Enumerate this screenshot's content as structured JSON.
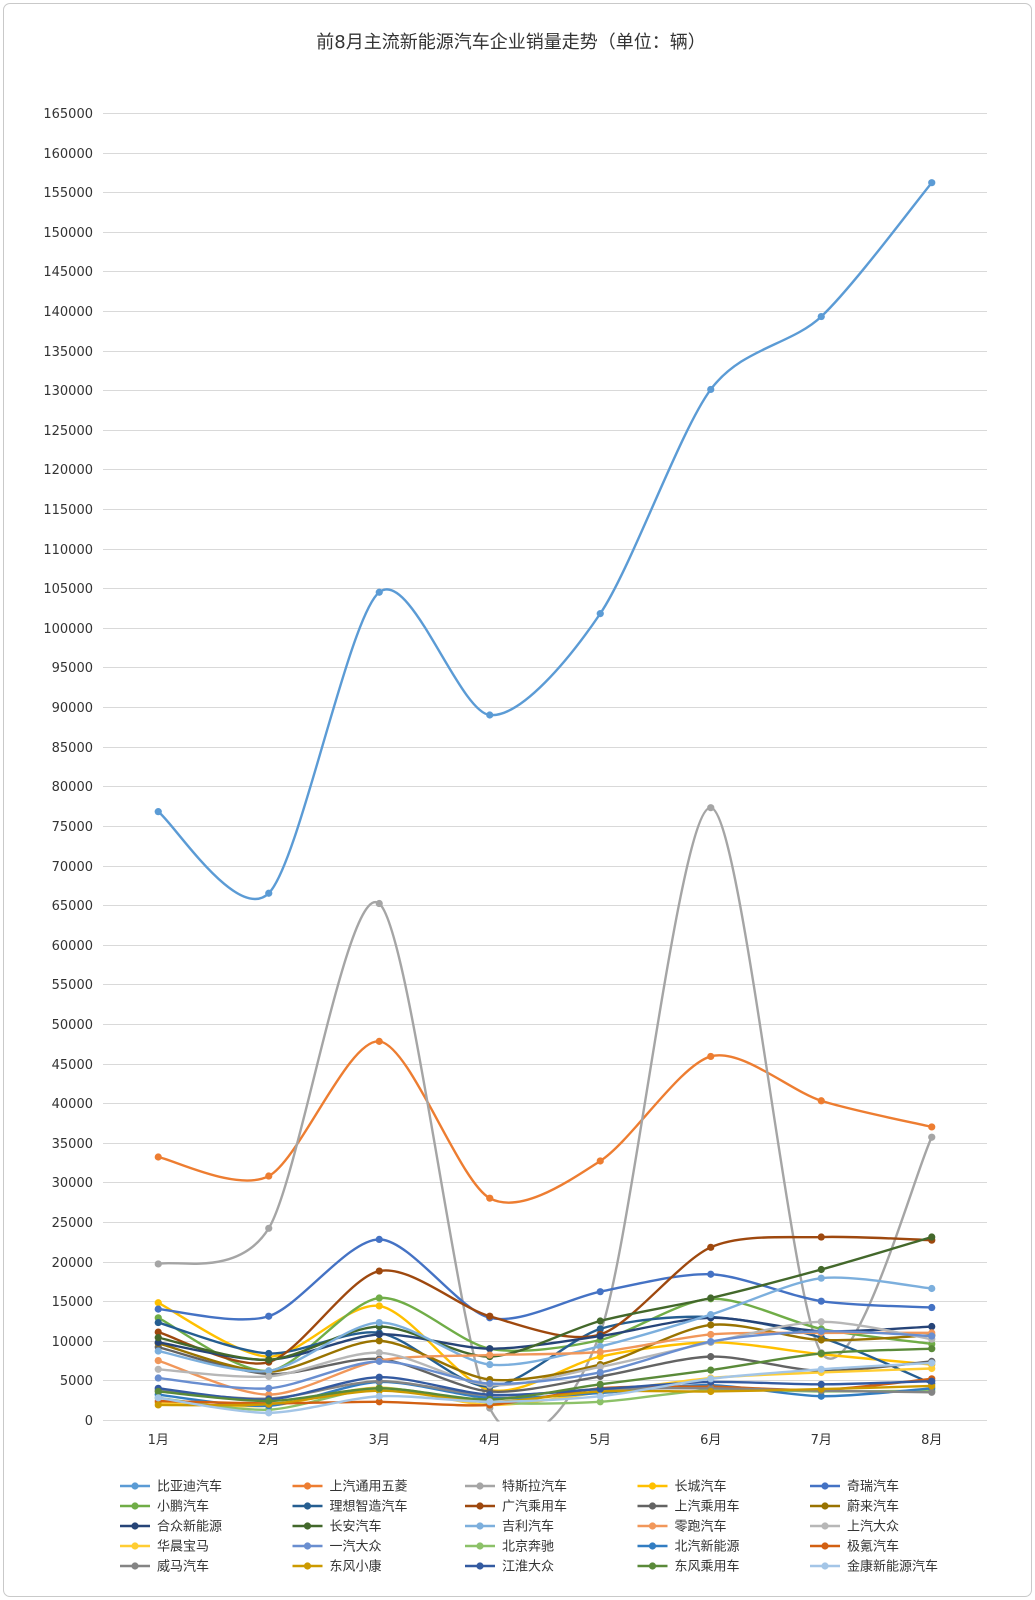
{
  "chart_data": {
    "type": "line",
    "title": "前8月主流新能源汽车企业销量走势（单位：辆）",
    "categories": [
      "1月",
      "2月",
      "3月",
      "4月",
      "5月",
      "6月",
      "7月",
      "8月"
    ],
    "ylim": [
      0,
      165000
    ],
    "ytick_step": 5000,
    "grid": true,
    "legend": "bottom",
    "smooth": true,
    "series": [
      {
        "name": "比亚迪汽车",
        "color": "#5b9bd5",
        "values": [
          76800,
          66500,
          104500,
          89000,
          101800,
          130100,
          139300,
          156200
        ]
      },
      {
        "name": "上汽通用五菱",
        "color": "#ed7d31",
        "values": [
          33200,
          30800,
          47800,
          28000,
          32700,
          45900,
          40300,
          37000
        ]
      },
      {
        "name": "特斯拉汽车",
        "color": "#a5a5a5",
        "values": [
          19700,
          24200,
          65200,
          1500,
          11000,
          77300,
          8500,
          35700
        ]
      },
      {
        "name": "长城汽车",
        "color": "#ffc000",
        "values": [
          14800,
          8000,
          14400,
          3800,
          8000,
          9800,
          8300,
          7000
        ]
      },
      {
        "name": "奇瑞汽车",
        "color": "#4472c4",
        "values": [
          14000,
          13100,
          22800,
          12900,
          16200,
          18400,
          15000,
          14200
        ]
      },
      {
        "name": "小鹏汽车",
        "color": "#70ad47",
        "values": [
          12900,
          6200,
          15400,
          9000,
          10100,
          15300,
          11500,
          9600
        ]
      },
      {
        "name": "理想智造汽车",
        "color": "#255e91",
        "values": [
          12300,
          8400,
          11000,
          4200,
          11500,
          13000,
          10400,
          4600
        ]
      },
      {
        "name": "广汽乘用车",
        "color": "#9e480e",
        "values": [
          11100,
          7300,
          18800,
          13100,
          10800,
          21800,
          23100,
          22700
        ]
      },
      {
        "name": "上汽乘用车",
        "color": "#636363",
        "values": [
          9200,
          5800,
          7700,
          3600,
          5500,
          8000,
          6200,
          7400
        ]
      },
      {
        "name": "蔚来汽车",
        "color": "#997300",
        "values": [
          9700,
          6100,
          10000,
          5100,
          7000,
          12000,
          10100,
          10700
        ]
      },
      {
        "name": "合众新能源",
        "color": "#264478",
        "values": [
          9800,
          7600,
          10800,
          9000,
          10600,
          12900,
          11200,
          11800
        ]
      },
      {
        "name": "长安汽车",
        "color": "#43682b",
        "values": [
          10400,
          7600,
          11800,
          8000,
          12500,
          15400,
          19000,
          23100
        ]
      },
      {
        "name": "吉利汽车",
        "color": "#7cafdd",
        "values": [
          8700,
          6200,
          12300,
          7000,
          9300,
          13300,
          17900,
          16600
        ]
      },
      {
        "name": "零跑汽车",
        "color": "#f1975a",
        "values": [
          7500,
          3200,
          7500,
          8200,
          8600,
          10800,
          11000,
          11000
        ]
      },
      {
        "name": "上汽大众",
        "color": "#b7b7b7",
        "values": [
          6400,
          5500,
          8500,
          4400,
          6700,
          9800,
          12400,
          10200
        ]
      },
      {
        "name": "华晨宝马",
        "color": "#ffcd33",
        "values": [
          2200,
          1800,
          4100,
          1900,
          3500,
          5300,
          6000,
          6500
        ]
      },
      {
        "name": "一汽大众",
        "color": "#698ed0",
        "values": [
          5300,
          4000,
          7400,
          4600,
          6000,
          9900,
          11200,
          10600
        ]
      },
      {
        "name": "北京奔驰",
        "color": "#8cc168",
        "values": [
          2800,
          1300,
          4000,
          2200,
          2300,
          3800,
          3600,
          3700
        ]
      },
      {
        "name": "北汽新能源",
        "color": "#327dc2",
        "values": [
          3200,
          1800,
          4800,
          2800,
          3400,
          4400,
          3000,
          4000
        ]
      },
      {
        "name": "极氪汽车",
        "color": "#d26012",
        "values": [
          2400,
          2100,
          2300,
          1900,
          4000,
          4200,
          3800,
          5200
        ]
      },
      {
        "name": "威马汽车",
        "color": "#848484",
        "values": [
          3700,
          2700,
          4900,
          3100,
          3900,
          4000,
          3700,
          3500
        ]
      },
      {
        "name": "东风小康",
        "color": "#cc9a00",
        "values": [
          1900,
          2000,
          3700,
          2300,
          3600,
          3600,
          3900,
          4300
        ]
      },
      {
        "name": "江淮大众",
        "color": "#335aa1",
        "values": [
          4000,
          2600,
          5400,
          3200,
          3900,
          4800,
          4500,
          4900
        ]
      },
      {
        "name": "东风乘用车",
        "color": "#5a8a39",
        "values": [
          3600,
          2400,
          4000,
          2600,
          4500,
          6300,
          8400,
          9000
        ]
      },
      {
        "name": "金康新能源汽车",
        "color": "#a3c5e7",
        "values": [
          2800,
          900,
          3000,
          2300,
          3000,
          5200,
          6400,
          7200
        ]
      }
    ]
  }
}
